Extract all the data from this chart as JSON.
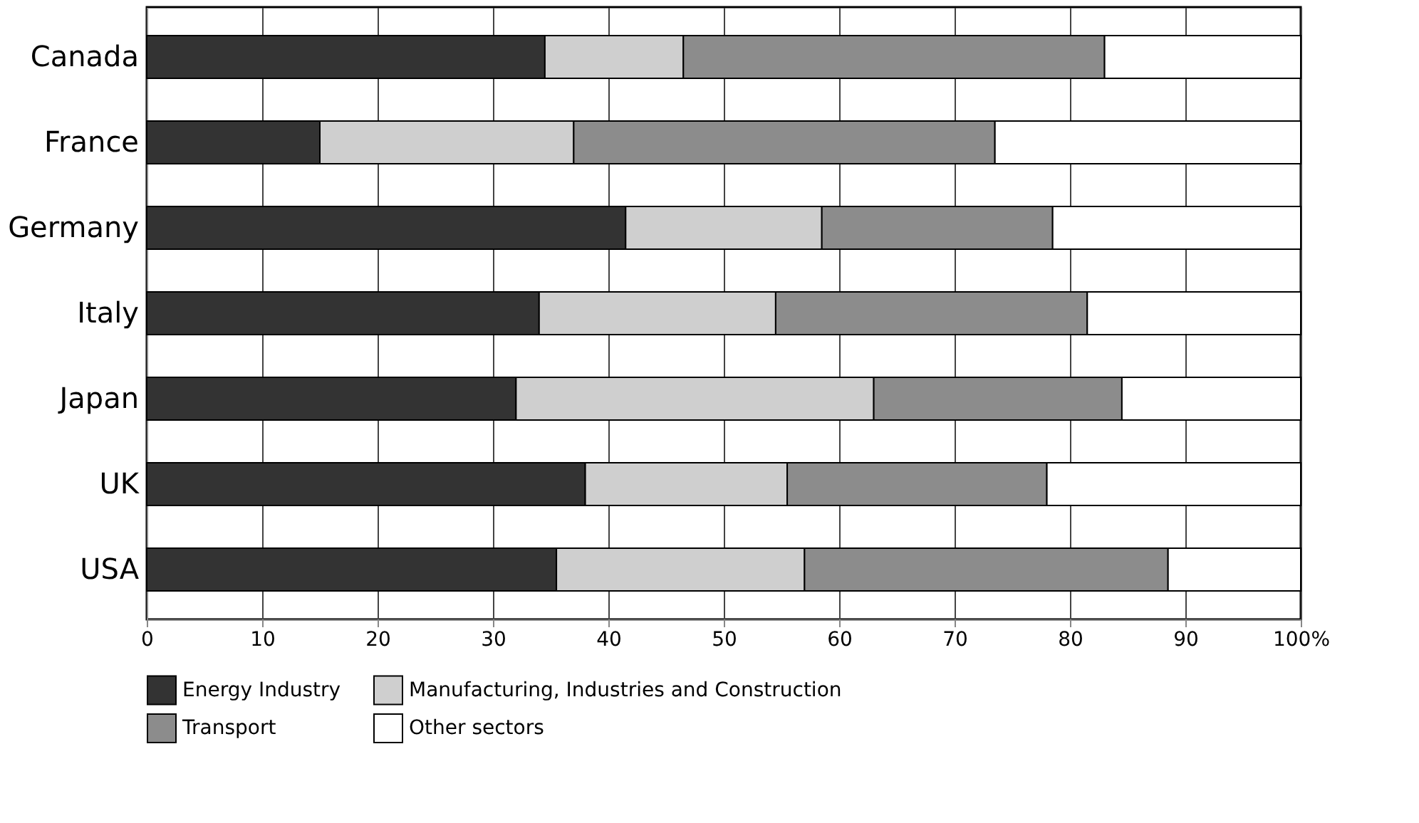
{
  "chart_data": {
    "type": "bar",
    "orientation": "horizontal",
    "stacked": true,
    "categories": [
      "Canada",
      "France",
      "Germany",
      "Italy",
      "Japan",
      "UK",
      "USA"
    ],
    "series": [
      {
        "name": "Energy Industry",
        "color": "#333333",
        "values": [
          34.5,
          15,
          41.5,
          34,
          32,
          38,
          35.5
        ]
      },
      {
        "name": "Manufacturing, Industries and Construction",
        "color": "#cfcfcf",
        "values": [
          12,
          22,
          17,
          20.5,
          31,
          17.5,
          21.5
        ]
      },
      {
        "name": "Transport",
        "color": "#8c8c8c",
        "values": [
          36.5,
          36.5,
          20,
          27,
          21.5,
          22.5,
          31.5
        ]
      },
      {
        "name": "Other sectors",
        "color": "#ffffff",
        "values": [
          17,
          26.5,
          21.5,
          18.5,
          15.5,
          22,
          11.5
        ]
      }
    ],
    "xlim": [
      0,
      100
    ],
    "xticks": [
      0,
      10,
      20,
      30,
      40,
      50,
      60,
      70,
      80,
      90,
      {
        "value": 100,
        "label": "100%"
      }
    ],
    "grid": true,
    "legend": "bottom"
  }
}
